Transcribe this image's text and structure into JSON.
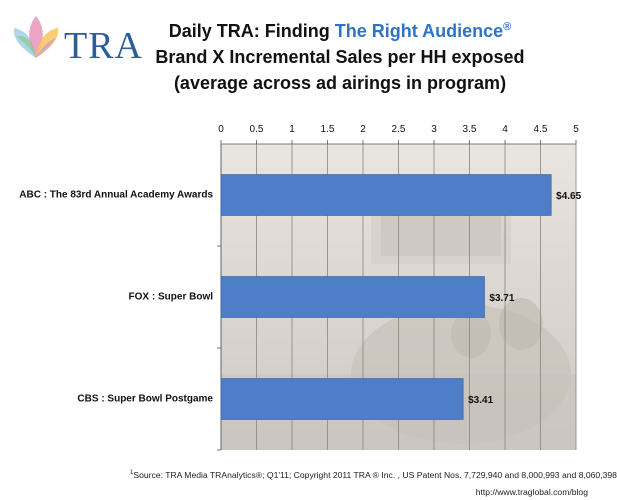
{
  "header": {
    "logo_text": "TRA",
    "title_prefix": "Daily TRA: Finding ",
    "title_accent": "The Right Audience",
    "title_mark": "®",
    "subtitle_line1": "Brand X Incremental Sales per HH exposed",
    "subtitle_line2": "(average across ad airings in program)"
  },
  "colors": {
    "bar": "#4f7ec8",
    "bar_stroke": "#3c67a8",
    "accent": "#2e74c5",
    "logo": "#2f5d9a"
  },
  "chart_data": {
    "type": "bar",
    "orientation": "horizontal",
    "categories": [
      "ABC : The 83rd Annual Academy Awards",
      "FOX : Super Bowl",
      "CBS : Super Bowl Postgame"
    ],
    "values": [
      4.65,
      3.71,
      3.41
    ],
    "data_labels": [
      "$4.65",
      "$3.71",
      "$3.41"
    ],
    "xlim": [
      0,
      5
    ],
    "x_ticks": [
      "0",
      "0.5",
      "1",
      "1.5",
      "2",
      "2.5",
      "3",
      "3.5",
      "4",
      "4.5",
      "5"
    ],
    "x_axis_position": "top",
    "grid": true,
    "legend": "none"
  },
  "footer": {
    "source_mark": "1",
    "source": "Source:  TRA Media TRAnalytics®; Q1'11; Copyright 2011 TRA ® Inc. , US Patent Nos. 7,729,940 and 8,000,993 and 8,060,398",
    "url": "http://www.traglobal.com/blog"
  }
}
